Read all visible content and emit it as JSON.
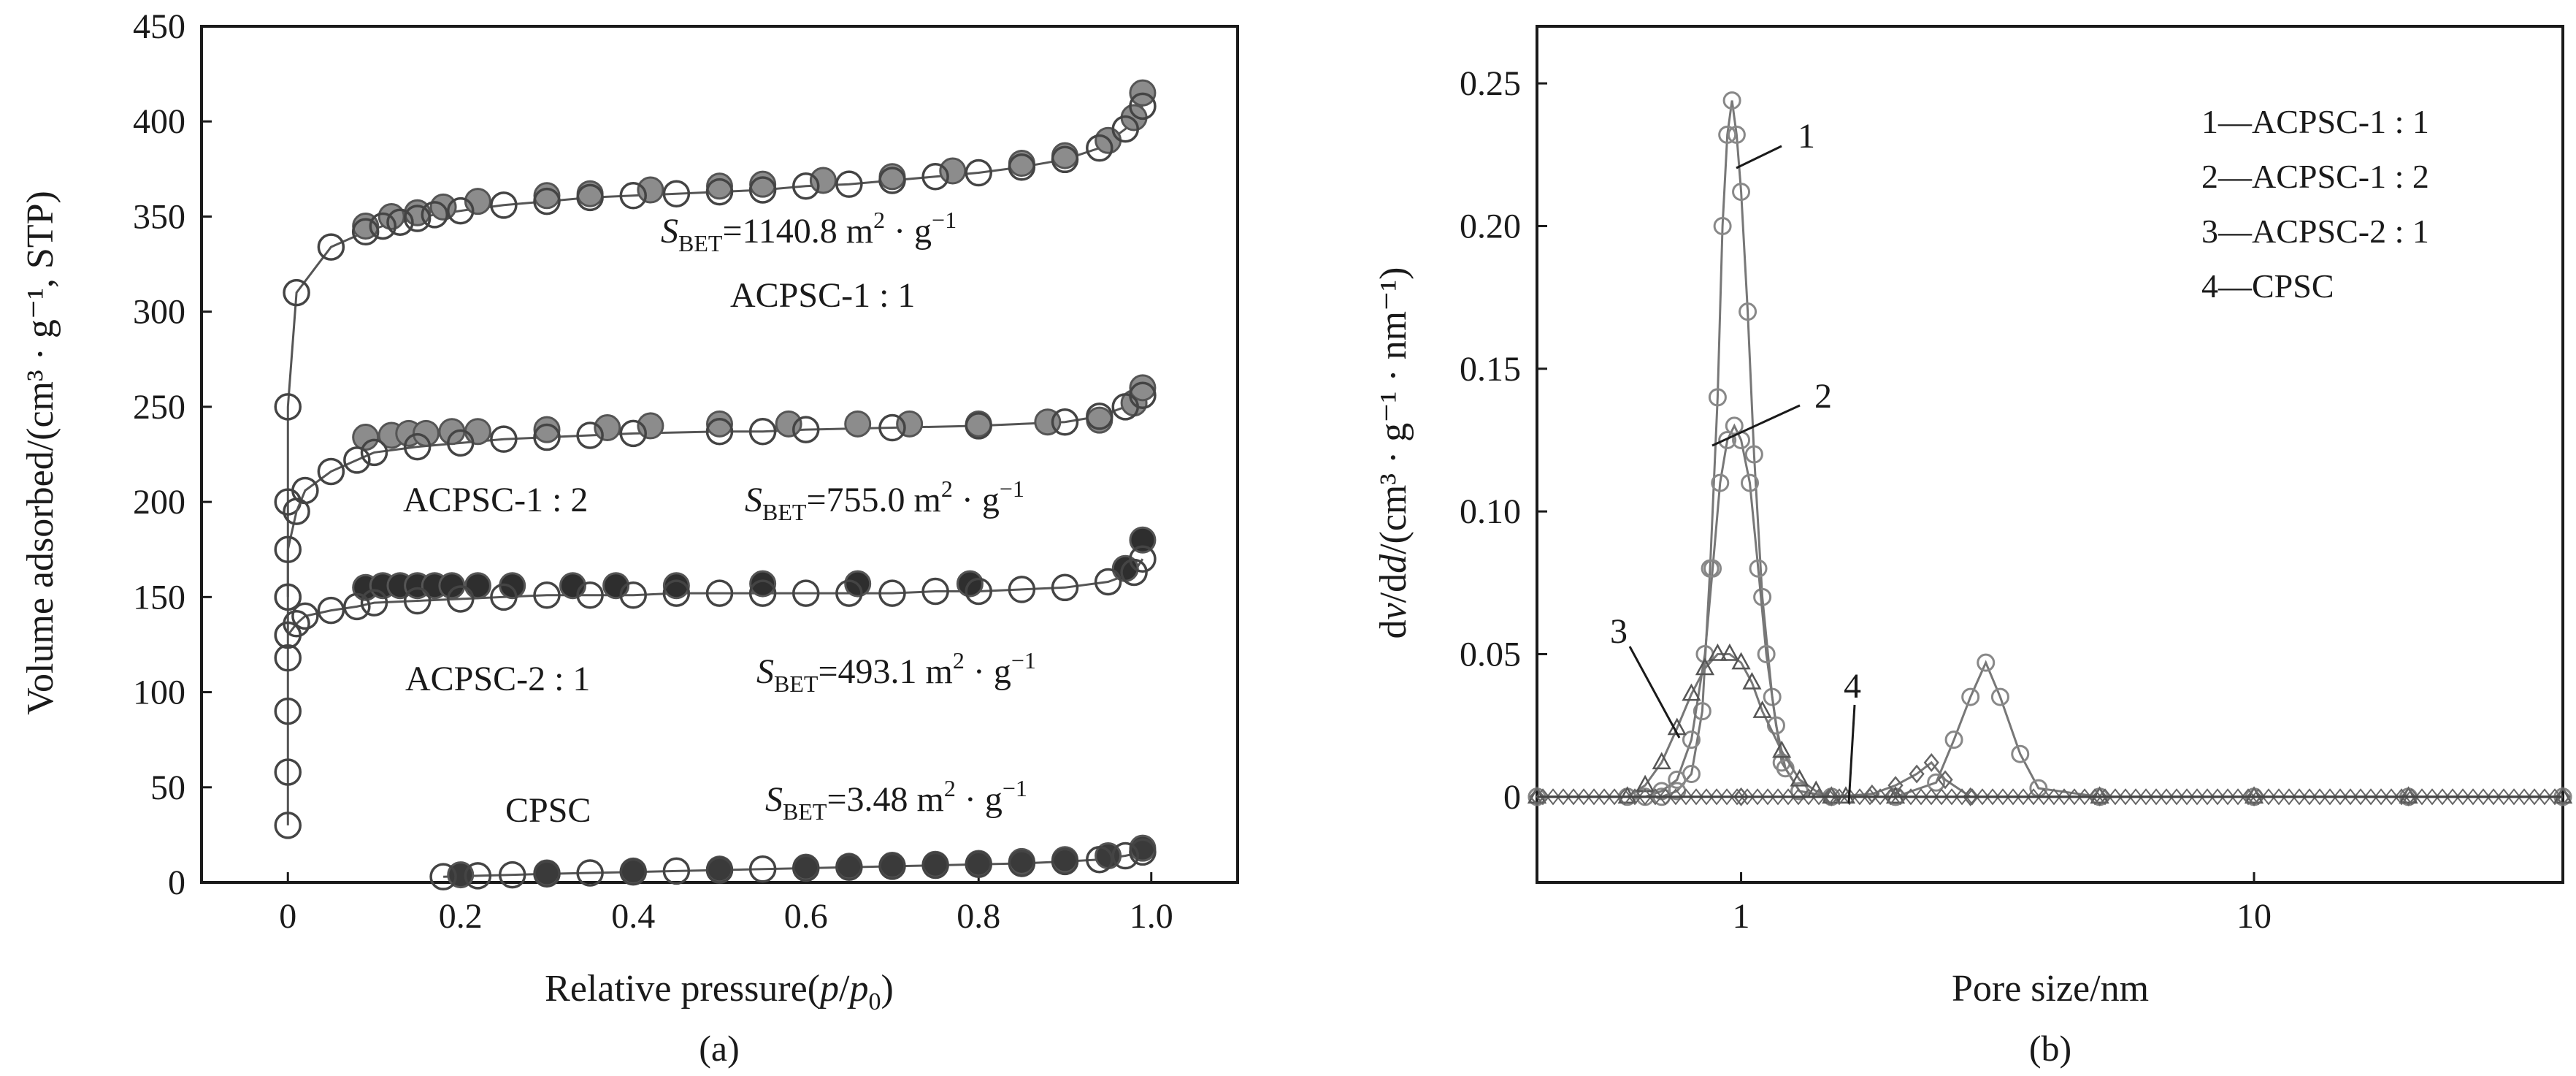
{
  "chart_data": [
    {
      "panel": "(a)",
      "type": "scatter",
      "xlabel_pre": "Relative pressure(",
      "xlabel_var": "p",
      "xlabel_mid": "/",
      "xlabel_var2": "p",
      "xlabel_sub": "0",
      "xlabel_post": ")",
      "ylabel": "Volume adsorbed/(cm³ · g⁻¹, STP)",
      "xlim": [
        -0.1,
        1.1
      ],
      "ylim": [
        0,
        450
      ],
      "xticks": [
        0,
        0.2,
        0.4,
        0.6,
        0.8,
        1.0
      ],
      "xtick_labels": [
        "0",
        "0.2",
        "0.4",
        "0.6",
        "0.8",
        "1.0"
      ],
      "yticks": [
        0,
        50,
        100,
        150,
        200,
        250,
        300,
        350,
        400,
        450
      ],
      "ytick_labels": [
        "0",
        "50",
        "100",
        "150",
        "200",
        "250",
        "300",
        "350",
        "400",
        "450"
      ],
      "annotations": [
        {
          "sbet_value": "=1140.8 m",
          "sbet_unit": " · g",
          "name": "ACPSC-1 : 1"
        },
        {
          "sbet_value": "=755.0 m",
          "sbet_unit": " · g",
          "name": "ACPSC-1 : 2"
        },
        {
          "sbet_value": "=493.1 m",
          "sbet_unit": " · g",
          "name": "ACPSC-2 : 1"
        },
        {
          "sbet_value": "=3.48 m",
          "sbet_unit": " · g",
          "name": "CPSC"
        }
      ],
      "sbet_symbol": "S",
      "sbet_sub": "BET",
      "sup_2": "2",
      "sup_neg1": "−1",
      "series": [
        {
          "name": "ACPSC-1 : 1",
          "filled_color": "#8c8c8c",
          "adsorption": {
            "x": [
              0.0,
              0.0,
              0.0,
              0.01,
              0.05,
              0.09,
              0.11,
              0.13,
              0.15,
              0.17,
              0.2,
              0.25,
              0.3,
              0.35,
              0.4,
              0.45,
              0.5,
              0.55,
              0.6,
              0.65,
              0.7,
              0.75,
              0.8,
              0.85,
              0.9,
              0.94,
              0.97,
              0.99
            ],
            "y": [
              150,
              200,
              250,
              310,
              334,
              342,
              345,
              347,
              349,
              351,
              353,
              356,
              358,
              360,
              361,
              362,
              363,
              364,
              366,
              367,
              369,
              371,
              373,
              376,
              380,
              386,
              396,
              408
            ]
          },
          "desorption": {
            "x": [
              0.09,
              0.12,
              0.15,
              0.18,
              0.22,
              0.3,
              0.35,
              0.42,
              0.5,
              0.55,
              0.62,
              0.7,
              0.77,
              0.85,
              0.9,
              0.95,
              0.98,
              0.99
            ],
            "y": [
              345,
              350,
              352,
              355,
              358,
              361,
              362,
              364,
              366,
              367,
              369,
              371,
              374,
              378,
              382,
              390,
              402,
              415
            ]
          }
        },
        {
          "name": "ACPSC-1 : 2",
          "filled_color": "#8c8c8c",
          "adsorption": {
            "x": [
              0.0,
              0.0,
              0.0,
              0.01,
              0.02,
              0.05,
              0.08,
              0.1,
              0.15,
              0.2,
              0.25,
              0.3,
              0.35,
              0.4,
              0.5,
              0.55,
              0.6,
              0.7,
              0.8,
              0.9,
              0.94,
              0.97,
              0.99
            ],
            "y": [
              130,
              150,
              175,
              195,
              206,
              216,
              222,
              226,
              229,
              231,
              233,
              234,
              235,
              236,
              237,
              237,
              238,
              239,
              240,
              242,
              245,
              250,
              256
            ]
          },
          "desorption": {
            "x": [
              0.09,
              0.12,
              0.14,
              0.16,
              0.19,
              0.22,
              0.3,
              0.37,
              0.42,
              0.5,
              0.58,
              0.66,
              0.72,
              0.8,
              0.88,
              0.94,
              0.98,
              0.99
            ],
            "y": [
              234,
              235,
              236,
              236,
              237,
              237,
              238,
              239,
              240,
              241,
              241,
              241,
              241,
              241,
              242,
              243,
              252,
              260
            ]
          }
        },
        {
          "name": "ACPSC-2 : 1",
          "filled_color": "#2e2e2e",
          "adsorption": {
            "x": [
              0.0,
              0.0,
              0.0,
              0.0,
              0.0,
              0.01,
              0.02,
              0.05,
              0.08,
              0.1,
              0.15,
              0.2,
              0.25,
              0.3,
              0.35,
              0.4,
              0.45,
              0.5,
              0.55,
              0.6,
              0.65,
              0.7,
              0.75,
              0.8,
              0.85,
              0.9,
              0.95,
              0.98,
              0.99
            ],
            "y": [
              30,
              58,
              90,
              118,
              130,
              136,
              140,
              143,
              145,
              147,
              148,
              149,
              150,
              151,
              151,
              151,
              152,
              152,
              152,
              152,
              152,
              152,
              153,
              153,
              154,
              155,
              158,
              163,
              170
            ]
          },
          "desorption": {
            "x": [
              0.09,
              0.11,
              0.13,
              0.15,
              0.17,
              0.19,
              0.22,
              0.26,
              0.33,
              0.38,
              0.45,
              0.55,
              0.66,
              0.79,
              0.97,
              0.99
            ],
            "y": [
              155,
              156,
              156,
              156,
              156,
              156,
              156,
              156,
              156,
              156,
              156,
              157,
              157,
              157,
              165,
              180
            ]
          }
        },
        {
          "name": "CPSC",
          "filled_color": "#3a3a3a",
          "adsorption": {
            "x": [
              0.18,
              0.22,
              0.26,
              0.3,
              0.35,
              0.4,
              0.45,
              0.5,
              0.55,
              0.6,
              0.65,
              0.7,
              0.75,
              0.8,
              0.85,
              0.9,
              0.94,
              0.97,
              0.99
            ],
            "y": [
              3,
              3.5,
              4,
              4.5,
              5,
              5.5,
              6,
              6.5,
              7,
              7.5,
              8,
              8.5,
              9,
              9.5,
              10,
              11,
              12,
              14,
              16
            ]
          },
          "desorption": {
            "x": [
              0.2,
              0.3,
              0.4,
              0.5,
              0.6,
              0.65,
              0.7,
              0.75,
              0.8,
              0.85,
              0.9,
              0.95,
              0.99
            ],
            "y": [
              4,
              5,
              6,
              7,
              8,
              8.5,
              9,
              9.5,
              10,
              11,
              12,
              14,
              18
            ]
          }
        }
      ]
    },
    {
      "panel": "(b)",
      "type": "line",
      "xlabel": "Pore size/nm",
      "ylabel_pre": "d",
      "ylabel_var": "v",
      "ylabel_mid": "/d",
      "ylabel_var2": "d",
      "ylabel_post": "/(cm³ · g⁻¹ · nm⁻¹)",
      "x_scale": "log",
      "xlim": [
        0.4,
        40
      ],
      "ylim": [
        -0.03,
        0.27
      ],
      "xticks": [
        1,
        10
      ],
      "xtick_labels": [
        "1",
        "10"
      ],
      "yticks": [
        0,
        0.05,
        0.1,
        0.15,
        0.2,
        0.25
      ],
      "ytick_labels": [
        "0",
        "0.05",
        "0.10",
        "0.15",
        "0.20",
        "0.25"
      ],
      "legend": [
        "1—ACPSC-1 : 1",
        "2—ACPSC-1 : 2",
        "3—ACPSC-2 : 1",
        "4—CPSC"
      ],
      "legend_position": "top-right",
      "callouts": [
        "1",
        "2",
        "3",
        "4"
      ],
      "series": [
        {
          "name": "1—ACPSC-1 : 1",
          "marker": "circle",
          "x": [
            0.4,
            0.6,
            0.7,
            0.75,
            0.8,
            0.84,
            0.87,
            0.9,
            0.92,
            0.94,
            0.96,
            0.98,
            1.0,
            1.03,
            1.06,
            1.1,
            1.15,
            1.2,
            1.3,
            1.5,
            2.0,
            5,
            10,
            20,
            40
          ],
          "y": [
            0,
            0,
            0,
            0.002,
            0.008,
            0.03,
            0.08,
            0.14,
            0.2,
            0.232,
            0.244,
            0.232,
            0.212,
            0.17,
            0.12,
            0.07,
            0.035,
            0.012,
            0.002,
            0,
            0,
            0,
            0,
            0,
            0
          ]
        },
        {
          "name": "2—ACPSC-1 : 2",
          "marker": "circle",
          "x": [
            0.4,
            0.65,
            0.7,
            0.75,
            0.8,
            0.85,
            0.88,
            0.91,
            0.94,
            0.97,
            1.0,
            1.04,
            1.08,
            1.12,
            1.17,
            1.22,
            1.3,
            1.5,
            2.0,
            2.4,
            2.6,
            2.8,
            3.0,
            3.2,
            3.5,
            3.8,
            5,
            10,
            20,
            40
          ],
          "y": [
            0,
            0,
            0.002,
            0.006,
            0.02,
            0.05,
            0.08,
            0.11,
            0.125,
            0.13,
            0.125,
            0.11,
            0.08,
            0.05,
            0.025,
            0.01,
            0.002,
            0,
            0,
            0.005,
            0.02,
            0.035,
            0.047,
            0.035,
            0.015,
            0.003,
            0,
            0,
            0,
            0
          ]
        },
        {
          "name": "3—ACPSC-2 : 1",
          "marker": "triangle",
          "x": [
            0.4,
            0.6,
            0.65,
            0.7,
            0.75,
            0.8,
            0.85,
            0.9,
            0.95,
            1.0,
            1.05,
            1.1,
            1.2,
            1.3,
            1.4,
            1.5,
            1.6,
            2.0,
            5,
            10,
            20,
            40
          ],
          "y": [
            0,
            0,
            0.004,
            0.012,
            0.024,
            0.036,
            0.045,
            0.05,
            0.05,
            0.047,
            0.04,
            0.03,
            0.016,
            0.006,
            0.002,
            0,
            0,
            0,
            0,
            0,
            0,
            0
          ]
        },
        {
          "name": "4—CPSC",
          "marker": "diamond",
          "x": [
            0.4,
            1.0,
            1.5,
            1.8,
            2.0,
            2.2,
            2.35,
            2.5,
            2.8,
            5,
            10,
            20,
            40
          ],
          "y": [
            0,
            0,
            0,
            0.001,
            0.004,
            0.008,
            0.012,
            0.006,
            0,
            0,
            0,
            0,
            0
          ]
        }
      ]
    }
  ]
}
